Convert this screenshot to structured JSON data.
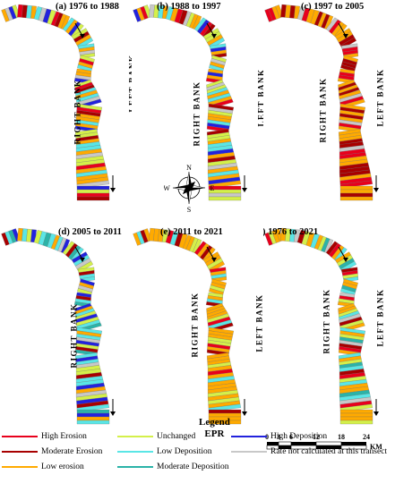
{
  "panels": [
    {
      "label": "(a) 1976 to 1988",
      "scheme": "mixed-blue"
    },
    {
      "label": "(b) 1988 to 1997",
      "scheme": "mixed-cyan"
    },
    {
      "label": "(c) 1997 to 2005",
      "scheme": "erosion"
    },
    {
      "label": "(d) 2005 to 2011",
      "scheme": "deposition"
    },
    {
      "label": "(e) 2011 to 2021",
      "scheme": "orange"
    },
    {
      "label": "(f) 1976 to 2021",
      "scheme": "mixed-teal"
    }
  ],
  "banks": {
    "right": "RIGHT BANK",
    "left": "LEFT BANK"
  },
  "compass": {
    "n": "N",
    "s": "S",
    "e": "E",
    "w": "W"
  },
  "legend": {
    "title_line1": "Legend",
    "title_line2": "EPR",
    "items": [
      {
        "key": "high_erosion",
        "label": "High Erosion",
        "color": "#e8001c"
      },
      {
        "key": "moderate_erosion",
        "label": "Moderate Erosion",
        "color": "#a80000"
      },
      {
        "key": "low_erosion",
        "label": "Low erosion",
        "color": "#ffaa00"
      },
      {
        "key": "unchanged",
        "label": "Unchanged",
        "color": "#d4f04a"
      },
      {
        "key": "low_deposition",
        "label": "Low Deposition",
        "color": "#5ae6e6"
      },
      {
        "key": "moderate_deposition",
        "label": "Moderate Deposition",
        "color": "#2bb3a8"
      },
      {
        "key": "high_deposition",
        "label": "High Deposition",
        "color": "#2222dd"
      },
      {
        "key": "not_calculated",
        "label": "Rate not calculated at this transect",
        "color": "#c8c8c8"
      }
    ]
  },
  "scale": {
    "ticks": [
      "0",
      "3",
      "6",
      "12",
      "18",
      "24"
    ],
    "unit": "KM"
  }
}
